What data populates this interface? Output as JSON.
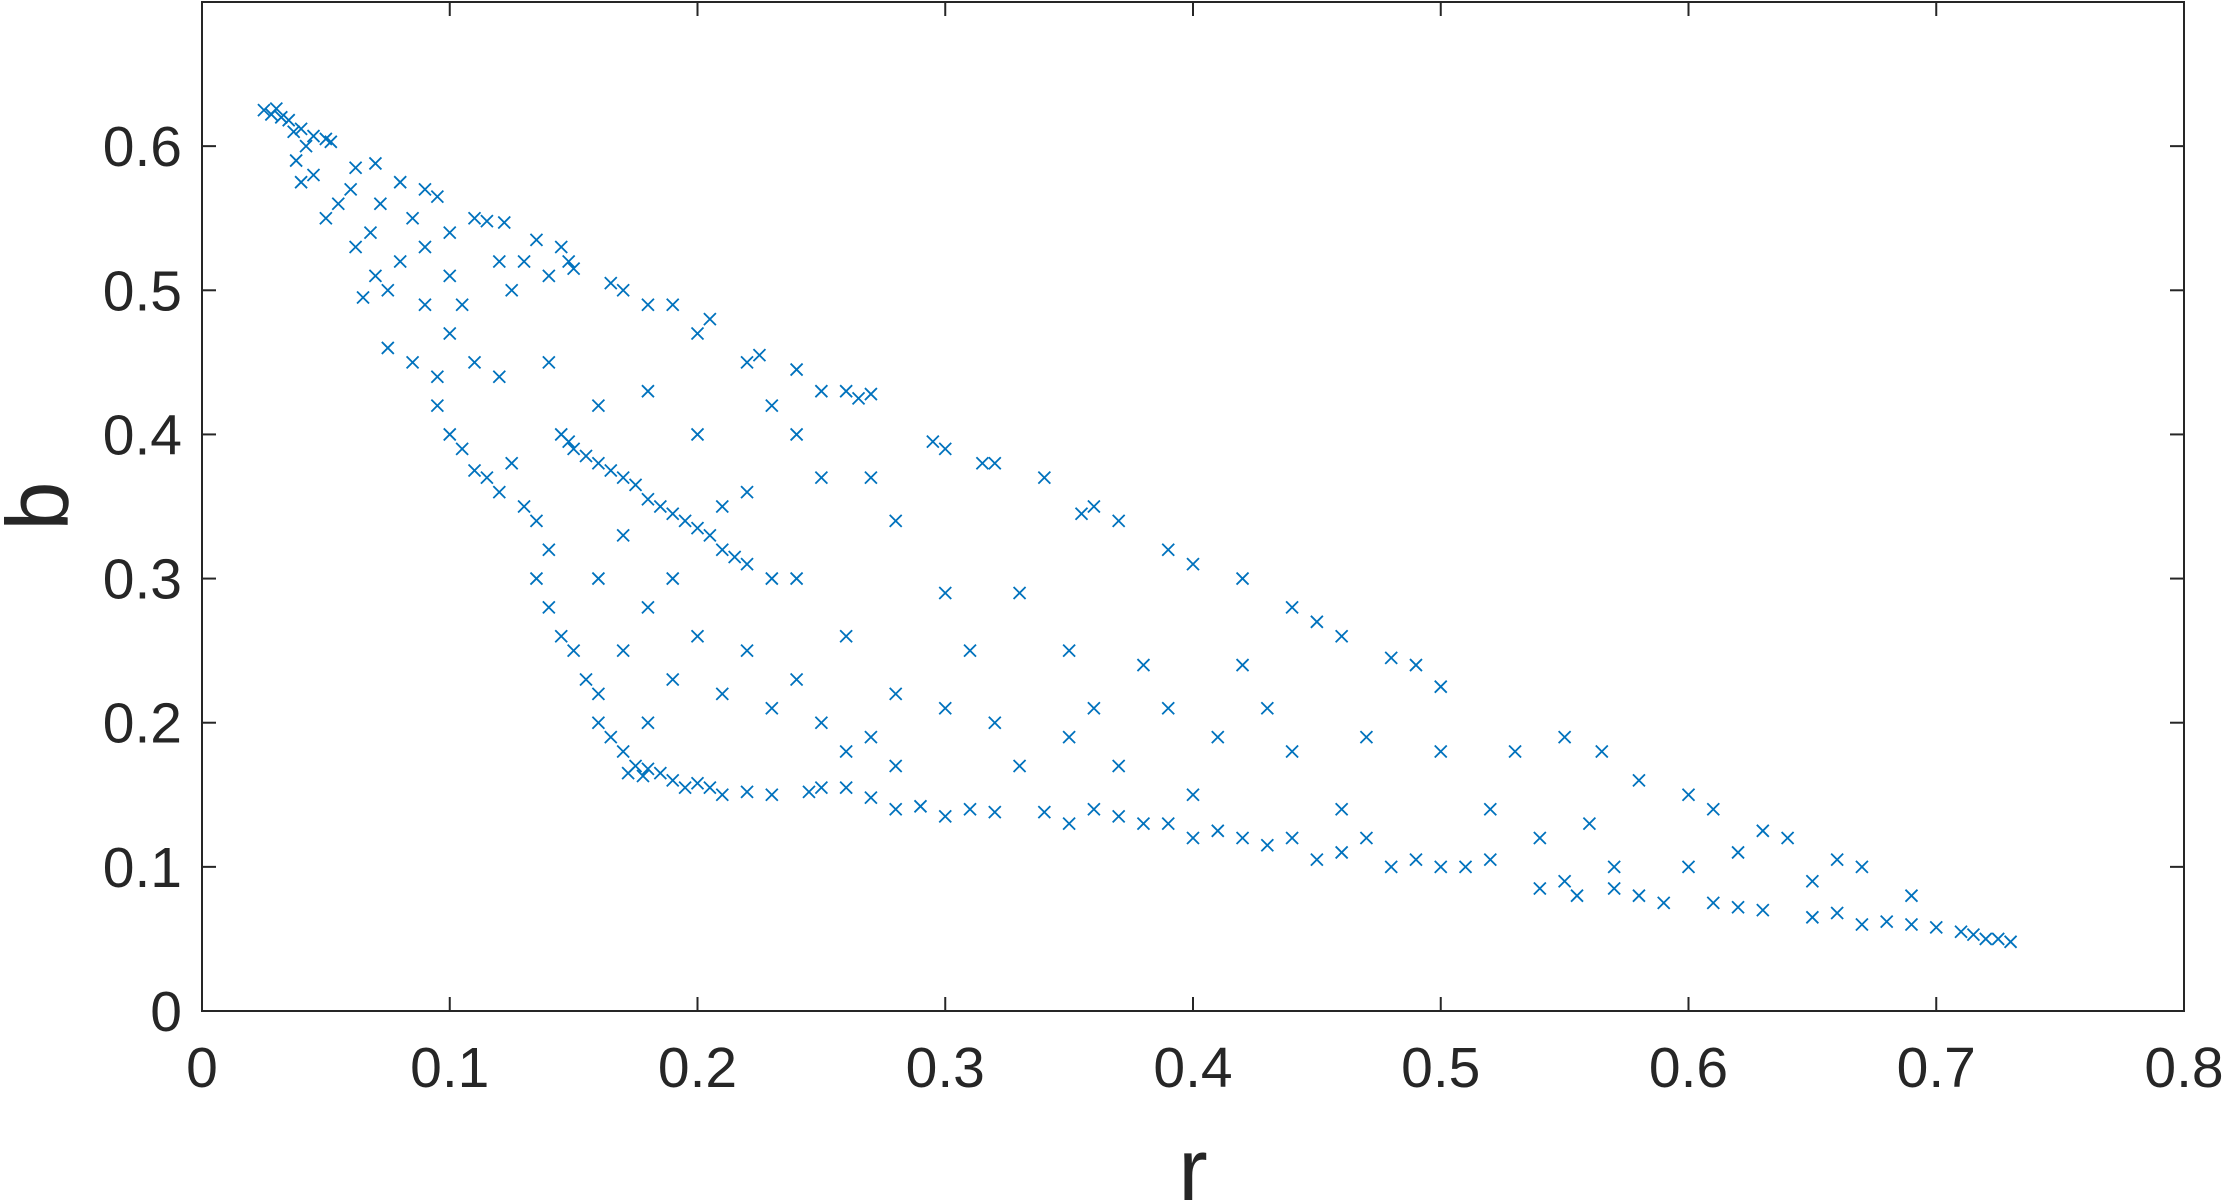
{
  "chart_data": {
    "type": "scatter",
    "x_label": "r",
    "y_label": "b",
    "color": "#0072BD",
    "marker": "x",
    "xlim": [
      0,
      0.8
    ],
    "ylim": [
      0,
      0.7
    ],
    "xticks": [
      0,
      0.1,
      0.2,
      0.3,
      0.4,
      0.5,
      0.6,
      0.7,
      0.8
    ],
    "yticks": [
      0,
      0.1,
      0.2,
      0.3,
      0.4,
      0.5,
      0.6
    ],
    "x": [
      0.025,
      0.028,
      0.03,
      0.032,
      0.035,
      0.037,
      0.04,
      0.042,
      0.045,
      0.05,
      0.052,
      0.038,
      0.04,
      0.045,
      0.055,
      0.05,
      0.06,
      0.062,
      0.07,
      0.072,
      0.068,
      0.062,
      0.08,
      0.085,
      0.09,
      0.095,
      0.07,
      0.075,
      0.065,
      0.08,
      0.09,
      0.1,
      0.11,
      0.115,
      0.122,
      0.12,
      0.13,
      0.135,
      0.145,
      0.148,
      0.14,
      0.125,
      0.1,
      0.105,
      0.09,
      0.075,
      0.085,
      0.095,
      0.1,
      0.11,
      0.12,
      0.095,
      0.1,
      0.105,
      0.11,
      0.12,
      0.115,
      0.125,
      0.13,
      0.135,
      0.14,
      0.135,
      0.14,
      0.145,
      0.15,
      0.155,
      0.16,
      0.16,
      0.165,
      0.17,
      0.175,
      0.172,
      0.178,
      0.18,
      0.185,
      0.19,
      0.195,
      0.2,
      0.205,
      0.21,
      0.22,
      0.23,
      0.245,
      0.25,
      0.26,
      0.27,
      0.28,
      0.29,
      0.3,
      0.31,
      0.32,
      0.34,
      0.35,
      0.36,
      0.37,
      0.38,
      0.39,
      0.4,
      0.41,
      0.42,
      0.43,
      0.44,
      0.45,
      0.46,
      0.47,
      0.48,
      0.49,
      0.5,
      0.51,
      0.52,
      0.54,
      0.55,
      0.555,
      0.57,
      0.58,
      0.59,
      0.61,
      0.62,
      0.63,
      0.65,
      0.66,
      0.67,
      0.68,
      0.69,
      0.7,
      0.71,
      0.715,
      0.72,
      0.725,
      0.73,
      0.15,
      0.165,
      0.17,
      0.18,
      0.19,
      0.2,
      0.205,
      0.22,
      0.225,
      0.24,
      0.25,
      0.26,
      0.265,
      0.27,
      0.295,
      0.3,
      0.315,
      0.32,
      0.34,
      0.355,
      0.36,
      0.37,
      0.39,
      0.4,
      0.42,
      0.44,
      0.45,
      0.46,
      0.48,
      0.49,
      0.5,
      0.53,
      0.55,
      0.565,
      0.58,
      0.6,
      0.61,
      0.63,
      0.64,
      0.66,
      0.67,
      0.69,
      0.145,
      0.148,
      0.15,
      0.155,
      0.16,
      0.165,
      0.17,
      0.175,
      0.18,
      0.185,
      0.19,
      0.195,
      0.2,
      0.205,
      0.21,
      0.215,
      0.22,
      0.14,
      0.16,
      0.18,
      0.2,
      0.23,
      0.24,
      0.25,
      0.27,
      0.28,
      0.22,
      0.21,
      0.23,
      0.24,
      0.26,
      0.28,
      0.3,
      0.31,
      0.33,
      0.35,
      0.36,
      0.38,
      0.39,
      0.41,
      0.42,
      0.43,
      0.44,
      0.46,
      0.47,
      0.5,
      0.52,
      0.54,
      0.56,
      0.57,
      0.6,
      0.62,
      0.65,
      0.3,
      0.32,
      0.27,
      0.25,
      0.23,
      0.21,
      0.19,
      0.18,
      0.17,
      0.16,
      0.18,
      0.2,
      0.22,
      0.24,
      0.26,
      0.28,
      0.33,
      0.37,
      0.4,
      0.35,
      0.19,
      0.17
    ],
    "values": [
      0.625,
      0.622,
      0.626,
      0.62,
      0.618,
      0.61,
      0.612,
      0.6,
      0.607,
      0.605,
      0.603,
      0.59,
      0.575,
      0.58,
      0.56,
      0.55,
      0.57,
      0.585,
      0.588,
      0.56,
      0.54,
      0.53,
      0.575,
      0.55,
      0.57,
      0.565,
      0.51,
      0.5,
      0.495,
      0.52,
      0.53,
      0.54,
      0.55,
      0.548,
      0.547,
      0.52,
      0.52,
      0.535,
      0.53,
      0.52,
      0.51,
      0.5,
      0.51,
      0.49,
      0.49,
      0.46,
      0.45,
      0.44,
      0.47,
      0.45,
      0.44,
      0.42,
      0.4,
      0.39,
      0.375,
      0.36,
      0.37,
      0.38,
      0.35,
      0.34,
      0.32,
      0.3,
      0.28,
      0.26,
      0.25,
      0.23,
      0.22,
      0.2,
      0.19,
      0.18,
      0.17,
      0.165,
      0.163,
      0.168,
      0.165,
      0.16,
      0.155,
      0.158,
      0.155,
      0.15,
      0.152,
      0.15,
      0.152,
      0.155,
      0.155,
      0.148,
      0.14,
      0.142,
      0.135,
      0.14,
      0.138,
      0.138,
      0.13,
      0.14,
      0.135,
      0.13,
      0.13,
      0.12,
      0.125,
      0.12,
      0.115,
      0.12,
      0.105,
      0.11,
      0.12,
      0.1,
      0.105,
      0.1,
      0.1,
      0.105,
      0.085,
      0.09,
      0.08,
      0.085,
      0.08,
      0.075,
      0.075,
      0.072,
      0.07,
      0.065,
      0.068,
      0.06,
      0.062,
      0.06,
      0.058,
      0.055,
      0.053,
      0.05,
      0.05,
      0.048,
      0.515,
      0.505,
      0.5,
      0.49,
      0.49,
      0.47,
      0.48,
      0.45,
      0.455,
      0.445,
      0.43,
      0.43,
      0.425,
      0.428,
      0.395,
      0.39,
      0.38,
      0.38,
      0.37,
      0.345,
      0.35,
      0.34,
      0.32,
      0.31,
      0.3,
      0.28,
      0.27,
      0.26,
      0.245,
      0.24,
      0.225,
      0.18,
      0.19,
      0.18,
      0.16,
      0.15,
      0.14,
      0.125,
      0.12,
      0.105,
      0.1,
      0.08,
      0.4,
      0.395,
      0.39,
      0.385,
      0.38,
      0.375,
      0.37,
      0.365,
      0.355,
      0.35,
      0.345,
      0.34,
      0.335,
      0.33,
      0.32,
      0.315,
      0.31,
      0.45,
      0.42,
      0.43,
      0.4,
      0.42,
      0.4,
      0.37,
      0.37,
      0.34,
      0.36,
      0.35,
      0.3,
      0.3,
      0.26,
      0.22,
      0.29,
      0.25,
      0.29,
      0.25,
      0.21,
      0.24,
      0.21,
      0.19,
      0.24,
      0.21,
      0.18,
      0.14,
      0.19,
      0.18,
      0.14,
      0.12,
      0.13,
      0.1,
      0.1,
      0.11,
      0.09,
      0.21,
      0.2,
      0.19,
      0.2,
      0.21,
      0.22,
      0.23,
      0.2,
      0.25,
      0.3,
      0.28,
      0.26,
      0.25,
      0.23,
      0.18,
      0.17,
      0.17,
      0.17,
      0.15,
      0.19,
      0.3,
      0.33
    ]
  }
}
